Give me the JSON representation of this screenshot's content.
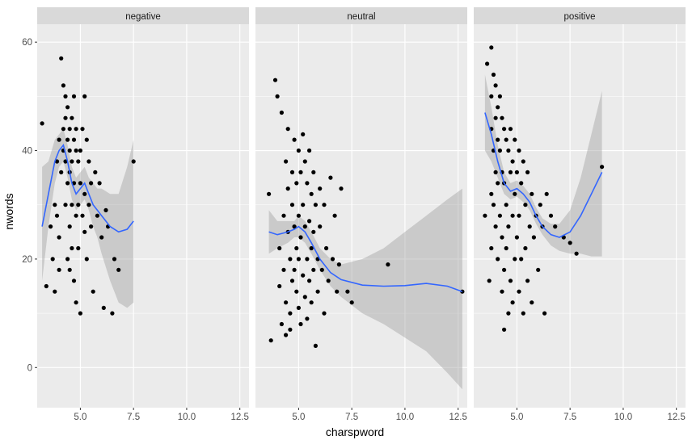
{
  "chart_data": {
    "type": "scatter",
    "facet_variable": "",
    "facets": [
      {
        "label": "negative",
        "points": [
          [
            3.2,
            45
          ],
          [
            3.4,
            15
          ],
          [
            3.6,
            26
          ],
          [
            3.7,
            20
          ],
          [
            3.8,
            14
          ],
          [
            3.8,
            30
          ],
          [
            3.9,
            28
          ],
          [
            3.9,
            38
          ],
          [
            4.0,
            42
          ],
          [
            4.0,
            18
          ],
          [
            4.0,
            24
          ],
          [
            4.1,
            57
          ],
          [
            4.1,
            36
          ],
          [
            4.2,
            52
          ],
          [
            4.2,
            44
          ],
          [
            4.2,
            40
          ],
          [
            4.3,
            50
          ],
          [
            4.3,
            46
          ],
          [
            4.3,
            38
          ],
          [
            4.3,
            30
          ],
          [
            4.4,
            48
          ],
          [
            4.4,
            42
          ],
          [
            4.4,
            34
          ],
          [
            4.4,
            20
          ],
          [
            4.5,
            44
          ],
          [
            4.5,
            40
          ],
          [
            4.5,
            36
          ],
          [
            4.5,
            26
          ],
          [
            4.5,
            18
          ],
          [
            4.6,
            46
          ],
          [
            4.6,
            38
          ],
          [
            4.6,
            30
          ],
          [
            4.6,
            22
          ],
          [
            4.7,
            50
          ],
          [
            4.7,
            42
          ],
          [
            4.7,
            34
          ],
          [
            4.7,
            16
          ],
          [
            4.8,
            44
          ],
          [
            4.8,
            40
          ],
          [
            4.8,
            28
          ],
          [
            4.8,
            12
          ],
          [
            4.9,
            38
          ],
          [
            4.9,
            30
          ],
          [
            4.9,
            22
          ],
          [
            5.0,
            10
          ],
          [
            5.0,
            40
          ],
          [
            5.0,
            34
          ],
          [
            5.1,
            44
          ],
          [
            5.1,
            28
          ],
          [
            5.2,
            32
          ],
          [
            5.2,
            25
          ],
          [
            5.2,
            50
          ],
          [
            5.3,
            42
          ],
          [
            5.3,
            20
          ],
          [
            5.4,
            38
          ],
          [
            5.4,
            30
          ],
          [
            5.5,
            34
          ],
          [
            5.5,
            26
          ],
          [
            5.6,
            14
          ],
          [
            5.7,
            36
          ],
          [
            5.8,
            28
          ],
          [
            5.9,
            34
          ],
          [
            6.0,
            24
          ],
          [
            6.1,
            11
          ],
          [
            6.2,
            29
          ],
          [
            6.3,
            26
          ],
          [
            6.5,
            10
          ],
          [
            6.6,
            20
          ],
          [
            6.8,
            18
          ],
          [
            7.5,
            38
          ]
        ],
        "smooth_x": [
          3.2,
          3.5,
          3.8,
          4.0,
          4.2,
          4.4,
          4.6,
          4.8,
          5.0,
          5.2,
          5.4,
          5.6,
          5.8,
          6.0,
          6.4,
          6.8,
          7.2,
          7.5
        ],
        "smooth_y": [
          26,
          32,
          38,
          40,
          41,
          38,
          34,
          32,
          33,
          34,
          32,
          30,
          29,
          28,
          26,
          25,
          25.5,
          27
        ],
        "band_lower": [
          16,
          26,
          34,
          37,
          38,
          35,
          31,
          29,
          30,
          31,
          29,
          26,
          24,
          21,
          16,
          12,
          11,
          12
        ],
        "band_upper": [
          37,
          38,
          42,
          43,
          44,
          41,
          37,
          35,
          36,
          37,
          35,
          34,
          33,
          33,
          32,
          32,
          37,
          42
        ]
      },
      {
        "label": "neutral",
        "points": [
          [
            3.6,
            32
          ],
          [
            3.7,
            5
          ],
          [
            3.9,
            53
          ],
          [
            4.0,
            50
          ],
          [
            4.1,
            22
          ],
          [
            4.1,
            15
          ],
          [
            4.2,
            8
          ],
          [
            4.2,
            47
          ],
          [
            4.3,
            28
          ],
          [
            4.3,
            18
          ],
          [
            4.4,
            12
          ],
          [
            4.4,
            38
          ],
          [
            4.4,
            6
          ],
          [
            4.5,
            44
          ],
          [
            4.5,
            33
          ],
          [
            4.5,
            25
          ],
          [
            4.6,
            20
          ],
          [
            4.6,
            10
          ],
          [
            4.6,
            7
          ],
          [
            4.7,
            36
          ],
          [
            4.7,
            30
          ],
          [
            4.7,
            16
          ],
          [
            4.8,
            42
          ],
          [
            4.8,
            26
          ],
          [
            4.8,
            18
          ],
          [
            4.9,
            34
          ],
          [
            4.9,
            22
          ],
          [
            4.9,
            14
          ],
          [
            5.0,
            40
          ],
          [
            5.0,
            28
          ],
          [
            5.0,
            20
          ],
          [
            5.0,
            11
          ],
          [
            5.1,
            36
          ],
          [
            5.1,
            24
          ],
          [
            5.1,
            8
          ],
          [
            5.2,
            43
          ],
          [
            5.2,
            30
          ],
          [
            5.2,
            17
          ],
          [
            5.3,
            38
          ],
          [
            5.3,
            26
          ],
          [
            5.3,
            13
          ],
          [
            5.4,
            34
          ],
          [
            5.4,
            20
          ],
          [
            5.4,
            9
          ],
          [
            5.5,
            40
          ],
          [
            5.5,
            27
          ],
          [
            5.5,
            16
          ],
          [
            5.6,
            32
          ],
          [
            5.6,
            22
          ],
          [
            5.6,
            12
          ],
          [
            5.7,
            36
          ],
          [
            5.7,
            25
          ],
          [
            5.7,
            18
          ],
          [
            5.8,
            4
          ],
          [
            5.8,
            30
          ],
          [
            5.9,
            20
          ],
          [
            5.9,
            14
          ],
          [
            6.0,
            33
          ],
          [
            6.0,
            26
          ],
          [
            6.1,
            18
          ],
          [
            6.2,
            30
          ],
          [
            6.2,
            10
          ],
          [
            6.3,
            22
          ],
          [
            6.4,
            16
          ],
          [
            6.5,
            35
          ],
          [
            6.6,
            20
          ],
          [
            6.7,
            28
          ],
          [
            6.8,
            14
          ],
          [
            6.9,
            19
          ],
          [
            7.0,
            33
          ],
          [
            7.3,
            14
          ],
          [
            7.5,
            12
          ],
          [
            9.2,
            19
          ],
          [
            12.7,
            14
          ]
        ],
        "smooth_x": [
          3.6,
          4.0,
          4.5,
          4.8,
          5.0,
          5.3,
          5.6,
          6.0,
          6.5,
          7.0,
          8.0,
          9.0,
          10.0,
          11.0,
          12.0,
          12.7
        ],
        "smooth_y": [
          25,
          24.5,
          25,
          25.5,
          26,
          25,
          23,
          20,
          17.5,
          16.2,
          15.2,
          15,
          15.1,
          15.5,
          15,
          14
        ],
        "band_lower": [
          21,
          22,
          23,
          24,
          24,
          23,
          21,
          18,
          15,
          13,
          10,
          8,
          5.5,
          3,
          -1,
          -4
        ],
        "band_upper": [
          29,
          27,
          27,
          27,
          28,
          27,
          25,
          22,
          20,
          19,
          20,
          22,
          25,
          28,
          31,
          33
        ]
      },
      {
        "label": "positive",
        "points": [
          [
            3.5,
            28
          ],
          [
            3.6,
            56
          ],
          [
            3.7,
            16
          ],
          [
            3.8,
            59
          ],
          [
            3.8,
            50
          ],
          [
            3.8,
            44
          ],
          [
            3.8,
            32
          ],
          [
            3.8,
            22
          ],
          [
            3.9,
            54
          ],
          [
            3.9,
            40
          ],
          [
            3.9,
            30
          ],
          [
            4.0,
            52
          ],
          [
            4.0,
            46
          ],
          [
            4.0,
            36
          ],
          [
            4.0,
            26
          ],
          [
            4.1,
            48
          ],
          [
            4.1,
            42
          ],
          [
            4.1,
            34
          ],
          [
            4.1,
            20
          ],
          [
            4.2,
            50
          ],
          [
            4.2,
            40
          ],
          [
            4.2,
            28
          ],
          [
            4.3,
            46
          ],
          [
            4.3,
            36
          ],
          [
            4.3,
            24
          ],
          [
            4.3,
            14
          ],
          [
            4.4,
            7
          ],
          [
            4.4,
            44
          ],
          [
            4.4,
            34
          ],
          [
            4.4,
            18
          ],
          [
            4.5,
            42
          ],
          [
            4.5,
            30
          ],
          [
            4.5,
            22
          ],
          [
            4.6,
            10
          ],
          [
            4.6,
            40
          ],
          [
            4.6,
            26
          ],
          [
            4.7,
            44
          ],
          [
            4.7,
            36
          ],
          [
            4.7,
            16
          ],
          [
            4.8,
            38
          ],
          [
            4.8,
            28
          ],
          [
            4.8,
            12
          ],
          [
            4.9,
            42
          ],
          [
            4.9,
            32
          ],
          [
            4.9,
            20
          ],
          [
            5.0,
            36
          ],
          [
            5.0,
            24
          ],
          [
            5.1,
            40
          ],
          [
            5.1,
            28
          ],
          [
            5.1,
            14
          ],
          [
            5.2,
            34
          ],
          [
            5.2,
            20
          ],
          [
            5.3,
            38
          ],
          [
            5.3,
            10
          ],
          [
            5.4,
            30
          ],
          [
            5.4,
            22
          ],
          [
            5.5,
            36
          ],
          [
            5.5,
            16
          ],
          [
            5.6,
            26
          ],
          [
            5.7,
            32
          ],
          [
            5.7,
            12
          ],
          [
            5.8,
            24
          ],
          [
            5.9,
            28
          ],
          [
            6.0,
            18
          ],
          [
            6.1,
            30
          ],
          [
            6.2,
            26
          ],
          [
            6.3,
            10
          ],
          [
            6.4,
            32
          ],
          [
            6.6,
            28
          ],
          [
            6.8,
            26
          ],
          [
            7.2,
            24
          ],
          [
            7.5,
            23
          ],
          [
            7.8,
            21
          ],
          [
            9.0,
            37
          ]
        ],
        "smooth_x": [
          3.5,
          3.8,
          4.1,
          4.4,
          4.7,
          5.0,
          5.3,
          5.6,
          5.9,
          6.2,
          6.6,
          7.0,
          7.5,
          8.0,
          8.5,
          9.0
        ],
        "smooth_y": [
          47,
          43,
          38,
          34,
          32.5,
          33,
          32,
          30.5,
          28,
          26,
          24.5,
          24,
          25,
          28,
          32,
          36
        ],
        "band_lower": [
          40,
          38,
          35,
          32,
          31,
          31.5,
          30.5,
          29,
          26.5,
          24.5,
          22.5,
          21.5,
          21,
          21,
          20.5,
          20.5
        ],
        "band_upper": [
          54,
          48,
          41,
          36,
          34,
          34.5,
          33.5,
          32,
          29.5,
          27.5,
          26.5,
          26.5,
          29,
          35,
          43,
          51
        ]
      }
    ],
    "xlabel": "charspword",
    "ylabel": "nwords",
    "xlim": [
      2.97,
      12.93
    ],
    "ylim": [
      -7.4,
      63.3
    ],
    "x_ticks": [
      5.0,
      7.5,
      10.0,
      12.5
    ],
    "x_tick_labels": [
      "5.0",
      "7.5",
      "10.0",
      "12.5"
    ],
    "y_ticks": [
      0,
      20,
      40,
      60
    ],
    "y_tick_labels": [
      "0",
      "20",
      "40",
      "60"
    ],
    "grid": true,
    "colors": {
      "panel_background": "#ebebeb",
      "strip_background": "#d9d9d9",
      "grid_major": "#ffffff",
      "point": "#000000",
      "smooth_line": "#3366ff",
      "confidence_band": "#999999"
    }
  }
}
